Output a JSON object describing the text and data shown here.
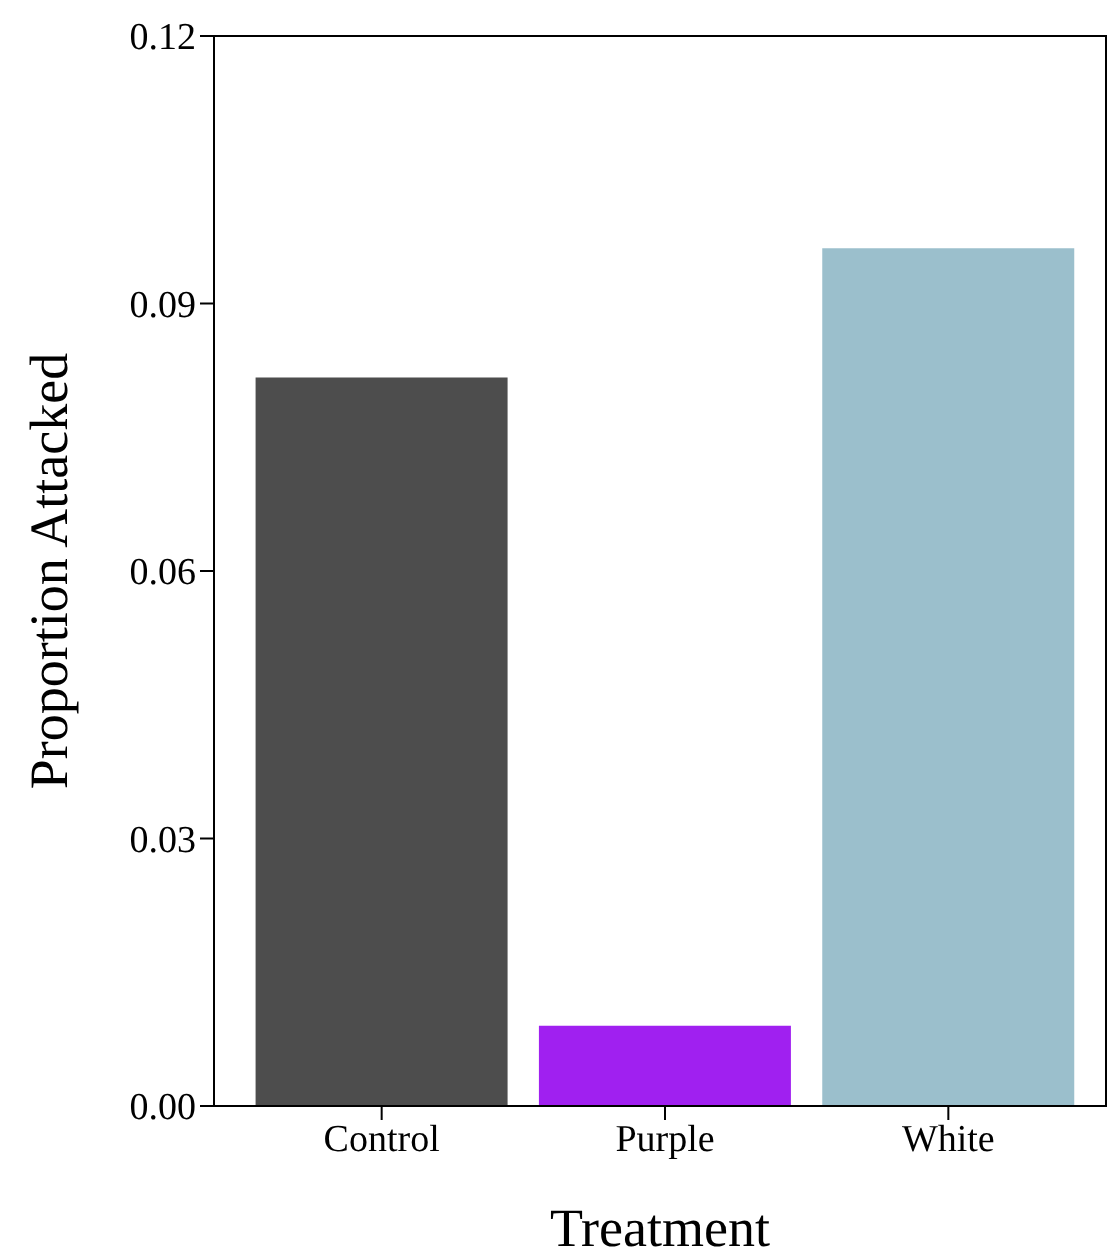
{
  "chart_data": {
    "type": "bar",
    "xlabel": "Treatment",
    "ylabel": "Proportion Attacked",
    "categories": [
      "Control",
      "Purple",
      "White"
    ],
    "values": [
      0.0817,
      0.009,
      0.0962
    ],
    "colors": [
      "#4d4d4d",
      "#a020f0",
      "#9bbfcc"
    ],
    "ylim": [
      0,
      0.12
    ],
    "yticks": [
      {
        "value": 0,
        "label": "0.00"
      },
      {
        "value": 0.03,
        "label": "0.03"
      },
      {
        "value": 0.06,
        "label": "0.06"
      },
      {
        "value": 0.09,
        "label": "0.09"
      },
      {
        "value": 0.12,
        "label": "0.12"
      }
    ],
    "grid": false,
    "legend": false
  }
}
